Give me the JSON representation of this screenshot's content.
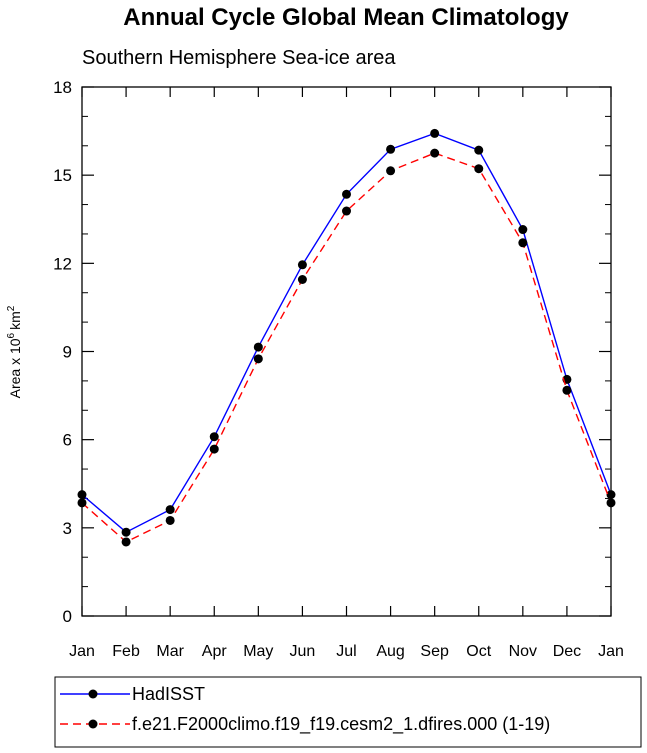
{
  "chart_data": {
    "type": "line",
    "title": "Annual Cycle Global Mean Climatology",
    "subtitle": "Southern Hemisphere Sea-ice area",
    "ylabel": "Area x 10",
    "ylabel_sup": "6",
    "ylabel_unit": "km",
    "ylabel_unit_sup": "2",
    "xlabel": "",
    "categories": [
      "Jan",
      "Feb",
      "Mar",
      "Apr",
      "May",
      "Jun",
      "Jul",
      "Aug",
      "Sep",
      "Oct",
      "Nov",
      "Dec",
      "Jan"
    ],
    "ylim": [
      0,
      18
    ],
    "yticks": [
      0,
      3,
      6,
      9,
      12,
      15,
      18
    ],
    "yticks_labels": [
      "0",
      "3",
      "6",
      "9",
      "12",
      "15",
      "18"
    ],
    "grid": false,
    "legend_position": "bottom",
    "series": [
      {
        "name": "HadISST",
        "color": "#0000ff",
        "dash": "solid",
        "values": [
          4.13,
          2.85,
          3.62,
          6.1,
          9.15,
          11.95,
          14.35,
          15.88,
          16.42,
          15.85,
          13.15,
          8.05,
          4.13
        ]
      },
      {
        "name": "f.e21.F2000climo.f19_f19.cesm2_1.dfires.000 (1-19)",
        "color": "#ff0000",
        "dash": "dashed",
        "values": [
          3.85,
          2.52,
          3.25,
          5.68,
          8.75,
          11.45,
          13.78,
          15.15,
          15.75,
          15.22,
          12.7,
          7.68,
          3.85
        ]
      }
    ]
  }
}
